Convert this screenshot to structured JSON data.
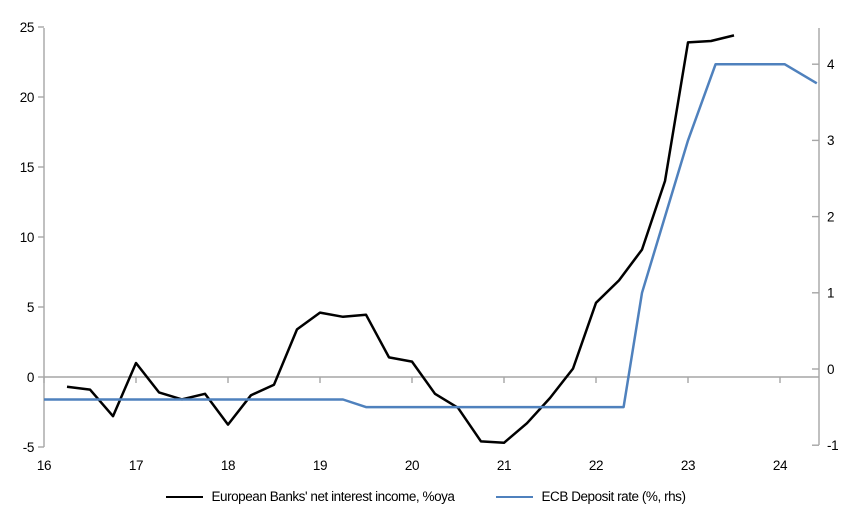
{
  "chart_data": {
    "type": "line",
    "title": "",
    "xlabel": "",
    "ylabel_left": "",
    "ylabel_right": "",
    "grid": "zero-line-only",
    "legend_position": "bottom",
    "x_axis": {
      "ticks": [
        16,
        17,
        18,
        19,
        20,
        21,
        22,
        23,
        24
      ],
      "range": [
        16,
        24.42
      ]
    },
    "left_axis": {
      "ticks": [
        -5,
        0,
        5,
        10,
        15,
        20,
        25
      ],
      "range": [
        -5,
        25
      ]
    },
    "right_axis": {
      "ticks": [
        -1,
        0,
        1,
        2,
        3,
        4
      ],
      "range": [
        -1,
        4.5
      ]
    },
    "series": [
      {
        "name": "European Banks' net interest income, %oya",
        "axis": "left",
        "color": "#000000",
        "points": [
          [
            16.25,
            -0.7
          ],
          [
            16.5,
            -0.9
          ],
          [
            16.75,
            -2.8
          ],
          [
            17.0,
            1.0
          ],
          [
            17.25,
            -1.1
          ],
          [
            17.5,
            -1.6
          ],
          [
            17.75,
            -1.2
          ],
          [
            18.0,
            -3.4
          ],
          [
            18.25,
            -1.3
          ],
          [
            18.5,
            -0.55
          ],
          [
            18.75,
            3.4
          ],
          [
            19.0,
            4.6
          ],
          [
            19.25,
            4.3
          ],
          [
            19.5,
            4.45
          ],
          [
            19.75,
            1.4
          ],
          [
            20.0,
            1.1
          ],
          [
            20.25,
            -1.2
          ],
          [
            20.5,
            -2.2
          ],
          [
            20.75,
            -4.6
          ],
          [
            21.0,
            -4.7
          ],
          [
            21.25,
            -3.3
          ],
          [
            21.5,
            -1.5
          ],
          [
            21.75,
            0.6
          ],
          [
            22.0,
            5.3
          ],
          [
            22.25,
            6.9
          ],
          [
            22.5,
            9.1
          ],
          [
            22.75,
            14.0
          ],
          [
            23.0,
            23.9
          ],
          [
            23.25,
            24.0
          ],
          [
            23.5,
            24.4
          ]
        ]
      },
      {
        "name": "ECB Deposit rate (%, rhs)",
        "axis": "right",
        "color": "#4F81BD",
        "points": [
          [
            16.0,
            -0.4
          ],
          [
            19.25,
            -0.4
          ],
          [
            19.5,
            -0.5
          ],
          [
            22.3,
            -0.5
          ],
          [
            22.5,
            1.0
          ],
          [
            22.75,
            2.0
          ],
          [
            23.0,
            3.0
          ],
          [
            23.3,
            4.0
          ],
          [
            24.05,
            4.0
          ],
          [
            24.4,
            3.75
          ]
        ]
      }
    ]
  },
  "colors": {
    "axis": "#A6A6A6",
    "nii_line": "#000000",
    "deposit_line": "#4F81BD",
    "text": "#000000"
  }
}
